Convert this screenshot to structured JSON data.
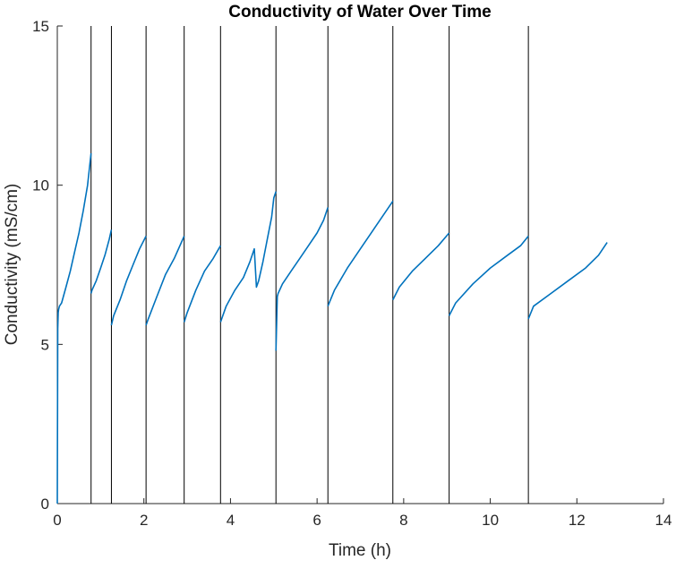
{
  "colors": {
    "series": "#0072BD",
    "marker_lines": "#000000",
    "axis": "#262626",
    "background": "#ffffff"
  },
  "chart_data": {
    "type": "line",
    "title": "Conductivity of Water Over Time",
    "xlabel": "Time (h)",
    "ylabel": "Conductivity (mS/cm)",
    "xlim": [
      0,
      14
    ],
    "ylim": [
      0,
      15
    ],
    "xticks": [
      0,
      2,
      4,
      6,
      8,
      10,
      12,
      14
    ],
    "yticks": [
      0,
      5,
      10,
      15
    ],
    "grid": false,
    "legend": "none",
    "vertical_lines": [
      0.78,
      1.25,
      2.05,
      2.93,
      3.77,
      5.05,
      6.25,
      7.75,
      9.05,
      10.88
    ],
    "series": [
      {
        "values_note": "",
        "segments": [
          {
            "x": [
              0.0,
              0.01,
              0.02,
              0.03,
              0.05,
              0.1,
              0.2,
              0.3,
              0.4,
              0.5,
              0.6,
              0.7,
              0.78
            ],
            "y": [
              0.0,
              5.5,
              6.0,
              6.1,
              6.2,
              6.3,
              6.8,
              7.3,
              7.9,
              8.5,
              9.2,
              10.0,
              11.0
            ]
          },
          {
            "x": [
              0.78,
              0.8,
              0.9,
              1.0,
              1.1,
              1.2,
              1.25
            ],
            "y": [
              6.6,
              6.7,
              7.0,
              7.4,
              7.8,
              8.3,
              8.6
            ]
          },
          {
            "x": [
              1.25,
              1.3,
              1.45,
              1.6,
              1.75,
              1.9,
              2.05
            ],
            "y": [
              5.6,
              5.9,
              6.4,
              7.0,
              7.5,
              8.0,
              8.4
            ]
          },
          {
            "x": [
              2.05,
              2.1,
              2.3,
              2.5,
              2.7,
              2.93
            ],
            "y": [
              5.6,
              5.8,
              6.5,
              7.2,
              7.7,
              8.4
            ]
          },
          {
            "x": [
              2.93,
              3.0,
              3.2,
              3.4,
              3.6,
              3.77
            ],
            "y": [
              5.7,
              6.0,
              6.7,
              7.3,
              7.7,
              8.1
            ]
          },
          {
            "x": [
              3.77,
              3.9,
              4.1,
              4.3,
              4.45,
              4.55,
              4.6,
              4.65,
              4.75,
              4.85,
              4.95,
              5.0,
              5.05
            ],
            "y": [
              5.7,
              6.2,
              6.7,
              7.1,
              7.6,
              8.0,
              6.8,
              7.0,
              7.6,
              8.3,
              9.0,
              9.6,
              9.8
            ]
          },
          {
            "x": [
              5.05,
              5.08,
              5.1,
              5.2,
              5.4,
              5.6,
              5.8,
              6.0,
              6.15,
              6.25
            ],
            "y": [
              4.8,
              6.5,
              6.6,
              6.9,
              7.3,
              7.7,
              8.1,
              8.5,
              8.9,
              9.3
            ]
          },
          {
            "x": [
              6.25,
              6.4,
              6.7,
              7.0,
              7.3,
              7.5,
              7.75
            ],
            "y": [
              6.2,
              6.7,
              7.4,
              8.0,
              8.6,
              9.0,
              9.5
            ]
          },
          {
            "x": [
              7.75,
              7.9,
              8.2,
              8.5,
              8.8,
              9.05
            ],
            "y": [
              6.4,
              6.8,
              7.3,
              7.7,
              8.1,
              8.5
            ]
          },
          {
            "x": [
              9.05,
              9.2,
              9.6,
              10.0,
              10.4,
              10.7,
              10.88
            ],
            "y": [
              5.9,
              6.3,
              6.9,
              7.4,
              7.8,
              8.1,
              8.4
            ]
          },
          {
            "x": [
              10.88,
              11.0,
              11.4,
              11.8,
              12.2,
              12.5,
              12.7
            ],
            "y": [
              5.8,
              6.2,
              6.6,
              7.0,
              7.4,
              7.8,
              8.2
            ]
          }
        ]
      }
    ]
  }
}
